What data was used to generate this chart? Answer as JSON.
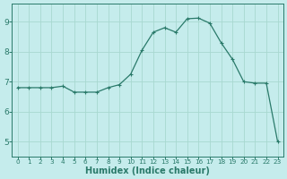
{
  "x": [
    0,
    1,
    2,
    3,
    4,
    5,
    6,
    7,
    8,
    9,
    10,
    11,
    12,
    13,
    14,
    15,
    16,
    17,
    18,
    19,
    20,
    21,
    22,
    23
  ],
  "y": [
    6.8,
    6.8,
    6.8,
    6.8,
    6.85,
    6.65,
    6.65,
    6.65,
    6.8,
    6.9,
    7.25,
    8.05,
    8.65,
    8.8,
    8.65,
    9.1,
    9.12,
    8.95,
    8.3,
    7.75,
    7.0,
    6.95,
    6.95,
    5.0
  ],
  "line_color": "#2a7a6a",
  "marker": "+",
  "marker_color": "#2a7a6a",
  "bg_color": "#c5ecec",
  "grid_color_major": "#a8d8d0",
  "grid_color_minor": "#b8e0d8",
  "axis_color": "#2a7a6a",
  "tick_color": "#2a7a6a",
  "xlabel": "Humidex (Indice chaleur)",
  "ylim": [
    4.5,
    9.6
  ],
  "xlim": [
    -0.5,
    23.5
  ],
  "yticks": [
    5,
    6,
    7,
    8,
    9
  ],
  "xticks": [
    0,
    1,
    2,
    3,
    4,
    5,
    6,
    7,
    8,
    9,
    10,
    11,
    12,
    13,
    14,
    15,
    16,
    17,
    18,
    19,
    20,
    21,
    22,
    23
  ],
  "xlabel_fontsize": 7,
  "xlabel_fontweight": "bold"
}
